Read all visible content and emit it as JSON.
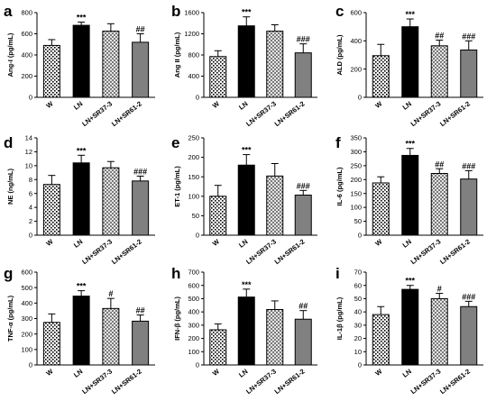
{
  "colors": {
    "w_pattern": "dots",
    "ln": "#000000",
    "sr37_pattern": "checker",
    "sr61": "#808080"
  },
  "chart_data": [
    {
      "type": "bar",
      "letter": "a",
      "ylabel": "Ang-I (pg/mL)",
      "ylim": [
        0,
        800
      ],
      "yticks": [
        "0",
        "200",
        "400",
        "600",
        "800"
      ],
      "categories": [
        "W",
        "LN",
        "LN+SR37-3",
        "LN+SR61-2"
      ],
      "values": [
        490,
        680,
        625,
        520
      ],
      "errors": [
        55,
        30,
        70,
        80
      ],
      "significance": [
        "",
        "***",
        "",
        "##"
      ]
    },
    {
      "type": "bar",
      "letter": "b",
      "ylabel": "Ang II (pg/mL)",
      "ylim": [
        0,
        1600
      ],
      "yticks": [
        "0",
        "400",
        "800",
        "1200",
        "1600"
      ],
      "categories": [
        "W",
        "LN",
        "LN+SR37-3",
        "LN+SR61-2"
      ],
      "values": [
        770,
        1350,
        1250,
        840
      ],
      "errors": [
        110,
        170,
        120,
        170
      ],
      "significance": [
        "",
        "***",
        "",
        "###"
      ]
    },
    {
      "type": "bar",
      "letter": "c",
      "ylabel": "ALD (pg/mL)",
      "ylim": [
        0,
        600
      ],
      "yticks": [
        "0",
        "200",
        "400",
        "600"
      ],
      "categories": [
        "W",
        "LN",
        "LN+SR37-3",
        "LN+SR61-2"
      ],
      "values": [
        295,
        500,
        365,
        335
      ],
      "errors": [
        80,
        55,
        40,
        65
      ],
      "significance": [
        "",
        "***",
        "##",
        "###"
      ]
    },
    {
      "type": "bar",
      "letter": "d",
      "ylabel": "NE (ng/mL)",
      "ylim": [
        0,
        14
      ],
      "yticks": [
        "0",
        "2",
        "4",
        "6",
        "8",
        "10",
        "12",
        "14"
      ],
      "categories": [
        "W",
        "LN",
        "LN+SR37-3",
        "LN+SR61-2"
      ],
      "values": [
        7.3,
        10.4,
        9.7,
        7.8
      ],
      "errors": [
        1.3,
        1.1,
        0.9,
        0.7
      ],
      "significance": [
        "",
        "***",
        "",
        "###"
      ]
    },
    {
      "type": "bar",
      "letter": "e",
      "ylabel": "ET-1 (pg/mL)",
      "ylim": [
        0,
        250
      ],
      "yticks": [
        "0",
        "50",
        "100",
        "150",
        "200",
        "250"
      ],
      "categories": [
        "W",
        "LN",
        "LN+SR37-3",
        "LN+SR61-2"
      ],
      "values": [
        100,
        180,
        152,
        103
      ],
      "errors": [
        28,
        27,
        32,
        12
      ],
      "significance": [
        "",
        "***",
        "",
        "###"
      ]
    },
    {
      "type": "bar",
      "letter": "f",
      "ylabel": "IL-6 (pg/mL)",
      "ylim": [
        0,
        350
      ],
      "yticks": [
        "0",
        "50",
        "100",
        "150",
        "200",
        "250",
        "300",
        "350"
      ],
      "categories": [
        "W",
        "LN",
        "LN+SR37-3",
        "LN+SR61-2"
      ],
      "values": [
        188,
        287,
        222,
        202
      ],
      "errors": [
        22,
        25,
        17,
        30
      ],
      "significance": [
        "",
        "***",
        "##",
        "###"
      ]
    },
    {
      "type": "bar",
      "letter": "g",
      "ylabel": "TNF-α (pg/mL)",
      "ylim": [
        0,
        600
      ],
      "yticks": [
        "0",
        "100",
        "200",
        "300",
        "400",
        "500",
        "600"
      ],
      "categories": [
        "W",
        "LN",
        "LN+SR37-3",
        "LN+SR61-2"
      ],
      "values": [
        275,
        445,
        365,
        283
      ],
      "errors": [
        55,
        35,
        65,
        40
      ],
      "significance": [
        "",
        "***",
        "#",
        "##"
      ]
    },
    {
      "type": "bar",
      "letter": "h",
      "ylabel": "IFN-β (pg/mL)",
      "ylim": [
        0,
        700
      ],
      "yticks": [
        "0",
        "100",
        "200",
        "300",
        "400",
        "500",
        "600",
        "700"
      ],
      "categories": [
        "W",
        "LN",
        "LN+SR37-3",
        "LN+SR61-2"
      ],
      "values": [
        265,
        512,
        418,
        345
      ],
      "errors": [
        45,
        60,
        65,
        65
      ],
      "significance": [
        "",
        "***",
        "",
        "##"
      ]
    },
    {
      "type": "bar",
      "letter": "i",
      "ylabel": "IL-1β (pg/mL)",
      "ylim": [
        0,
        70
      ],
      "yticks": [
        "0",
        "10",
        "20",
        "30",
        "40",
        "50",
        "60",
        "70"
      ],
      "categories": [
        "W",
        "LN",
        "LN+SR37-3",
        "LN+SR61-2"
      ],
      "values": [
        38,
        57,
        50,
        44
      ],
      "errors": [
        6,
        3,
        4,
        4
      ],
      "significance": [
        "",
        "***",
        "#",
        "###"
      ]
    }
  ]
}
